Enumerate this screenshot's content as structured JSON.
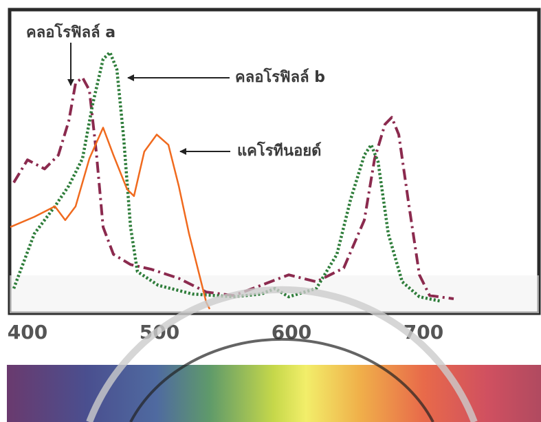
{
  "chart_data": {
    "type": "line",
    "xlim": [
      387,
      788
    ],
    "ylim": [
      -3,
      116
    ],
    "xticks": [
      400,
      500,
      600,
      700
    ],
    "series": [
      {
        "name": "คลอโรฟิลล์ a",
        "color": "#8b2a4e",
        "line_style": "dashdot",
        "x": [
          389.6,
          400,
          413,
          423.4,
          431.3,
          436.5,
          441.7,
          446.9,
          452.1,
          457.3,
          465.1,
          478.1,
          493.8,
          514.6,
          535.4,
          556.3,
          577.1,
          597.9,
          618.8,
          639.6,
          655.2,
          663,
          670.8,
          676,
          681.3,
          689.1,
          696.9,
          704.7,
          722.9
        ],
        "values": [
          47.9,
          57,
          53.4,
          58.9,
          72.6,
          87.7,
          89.9,
          84.9,
          60.3,
          30.1,
          19.2,
          15.1,
          13.2,
          9.6,
          4.1,
          2.7,
          6.8,
          11,
          8.2,
          13.7,
          32.9,
          57.5,
          71.2,
          74,
          67.1,
          38.4,
          11,
          2.7,
          1.4
        ]
      },
      {
        "name": "คลอโรฟิลล์ b",
        "color": "#2e7d3a",
        "line_style": "dotted",
        "x": [
          389.6,
          405.2,
          420.8,
          431.3,
          441.7,
          449.5,
          457.3,
          462.5,
          467.7,
          472.9,
          478.1,
          483.3,
          499,
          525,
          556.3,
          577.1,
          587.5,
          597.9,
          618.8,
          634.4,
          644.8,
          655.2,
          660.4,
          665.6,
          673.4,
          683.9,
          696.9,
          712.5
        ],
        "values": [
          5.5,
          27.4,
          38.4,
          46.6,
          57.5,
          79.5,
          97.3,
          100,
          93.2,
          65.8,
          30.1,
          12.3,
          6.8,
          3.3,
          2.2,
          3.3,
          5.5,
          2.2,
          5.5,
          19.2,
          41.1,
          58.9,
          63,
          56.2,
          27.4,
          8.2,
          2.2,
          0.5
        ]
      },
      {
        "name": "แคโรทีนอยด์",
        "color": "#f06a1e",
        "line_style": "solid",
        "x": [
          387,
          405.2,
          420.8,
          428.6,
          436.5,
          446.9,
          457.3,
          465.1,
          475.5,
          480.7,
          488.5,
          497.9,
          506.8,
          514.6,
          522.4,
          530.2,
          535.4,
          538
        ],
        "values": [
          30.1,
          34.2,
          38.4,
          32.9,
          38.4,
          57.5,
          69.9,
          58.9,
          45.2,
          42.5,
          60.3,
          67.1,
          63,
          46.6,
          27.4,
          11,
          0,
          -2.7
        ]
      }
    ]
  }
}
